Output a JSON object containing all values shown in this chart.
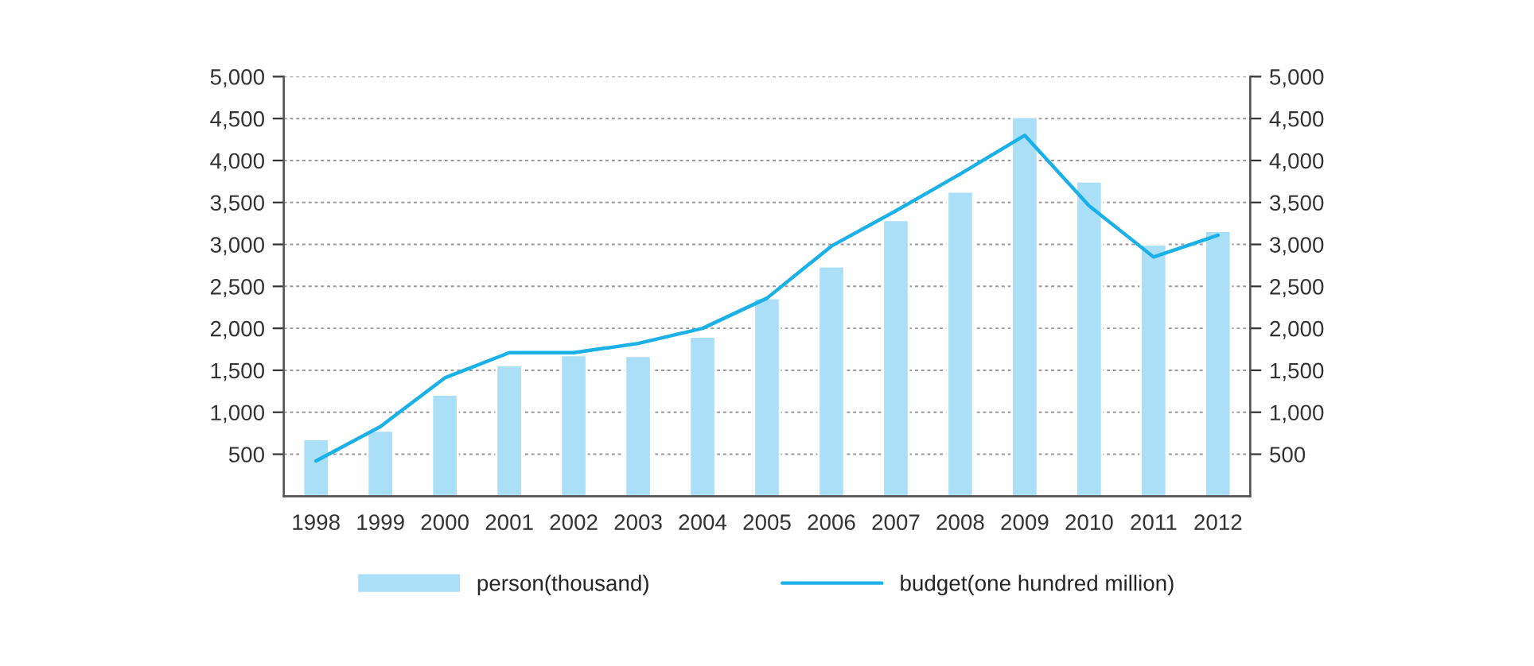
{
  "chart_data": {
    "type": "bar",
    "categories": [
      "1998",
      "1999",
      "2000",
      "2001",
      "2002",
      "2003",
      "2004",
      "2005",
      "2006",
      "2007",
      "2008",
      "2009",
      "2010",
      "2011",
      "2012"
    ],
    "series": [
      {
        "name": "person(thousand)",
        "color": "#aadff7",
        "values": [
          680,
          780,
          1210,
          1560,
          1680,
          1670,
          1900,
          2360,
          2740,
          3290,
          3630,
          4520,
          3750,
          3000,
          3160
        ]
      },
      {
        "name": "budget(one hundred million)",
        "type": "line",
        "color": "#1ab0e8",
        "values": [
          420,
          830,
          1410,
          1710,
          1710,
          1820,
          2000,
          2360,
          2980,
          3400,
          3840,
          4300,
          3460,
          2850,
          3110
        ]
      }
    ],
    "ylim": [
      0,
      5000
    ],
    "yticks": [
      500,
      {
        "value": 1000,
        "label": "1,000"
      },
      {
        "value": 1500,
        "label": "1,500"
      },
      {
        "value": 2000,
        "label": "2,000"
      },
      {
        "value": 2500,
        "label": "2,500"
      },
      {
        "value": 3000,
        "label": "3,000"
      },
      {
        "value": 3500,
        "label": "3,500"
      },
      {
        "value": 4000,
        "label": "4,000"
      },
      {
        "value": 4500,
        "label": "4,500"
      },
      {
        "value": 5000,
        "label": "5,000"
      }
    ],
    "y2lim": [
      0,
      5000
    ],
    "y2ticks": [
      500,
      {
        "value": 1000,
        "label": "1,000"
      },
      {
        "value": 1500,
        "label": "1,500"
      },
      {
        "value": 2000,
        "label": "2,000"
      },
      {
        "value": 2500,
        "label": "2,500"
      },
      {
        "value": 3000,
        "label": "3,000"
      },
      {
        "value": 3500,
        "label": "3,500"
      },
      {
        "value": 4000,
        "label": "4,000"
      },
      {
        "value": 4500,
        "label": "4,500"
      },
      {
        "value": 5000,
        "label": "5,000"
      }
    ],
    "grid": "y",
    "legend": "bottom",
    "marker": "none",
    "line_style": "solid"
  }
}
